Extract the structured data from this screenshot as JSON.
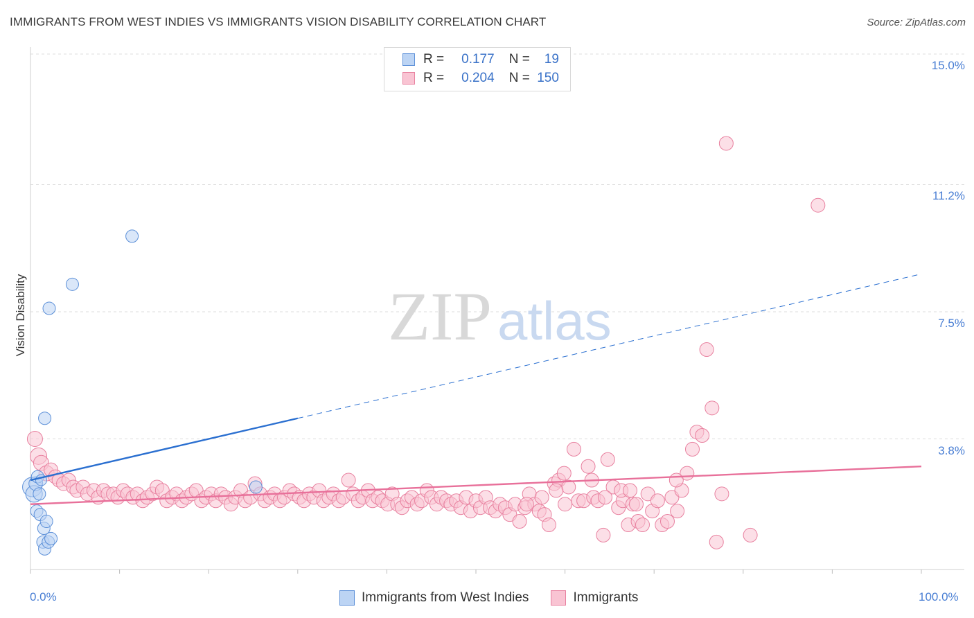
{
  "header": {
    "title": "IMMIGRANTS FROM WEST INDIES VS IMMIGRANTS VISION DISABILITY CORRELATION CHART",
    "source": "Source: ZipAtlas.com"
  },
  "watermark": {
    "zip": "ZIP",
    "atlas": "atlas"
  },
  "legend": {
    "rows": [
      {
        "r_label": "R =",
        "r_value": "0.177",
        "n_label": "N =",
        "n_value": "19",
        "color": "#a9c8f0"
      },
      {
        "r_label": "R =",
        "r_value": "0.204",
        "n_label": "N =",
        "n_value": "150",
        "color": "#f7b6c9"
      }
    ],
    "bottom": [
      {
        "label": "Immigrants from West Indies",
        "color": "#a9c8f0"
      },
      {
        "label": "Immigrants",
        "color": "#f7b6c9"
      }
    ]
  },
  "colors": {
    "blue": "#5b8fd8",
    "blue_fill": "#bcd4f4",
    "blue_line": "#2a6fd0",
    "pink": "#e8809f",
    "pink_fill": "#f9c4d3",
    "pink_line": "#e8709a",
    "grid": "#dcdcdc",
    "tick_text": "#4a7fd4"
  },
  "chart_data": {
    "type": "scatter",
    "title": "IMMIGRANTS FROM WEST INDIES VS IMMIGRANTS VISION DISABILITY CORRELATION CHART",
    "xlabel": "",
    "ylabel": "Vision Disability",
    "xlim": [
      0,
      100
    ],
    "ylim": [
      0,
      15
    ],
    "x_tick_labels": [
      "0.0%",
      "100.0%"
    ],
    "y_ticks": [
      3.8,
      7.5,
      11.2,
      15.0
    ],
    "y_tick_labels": [
      "3.8%",
      "7.5%",
      "11.2%",
      "15.0%"
    ],
    "grid": true,
    "series": [
      {
        "name": "Immigrants from West Indies",
        "r": 0.177,
        "n": 19,
        "trend": {
          "x0": 0,
          "y0": 2.6,
          "x1": 30,
          "y1": 4.4,
          "dash_to_x": 100,
          "dash_to_y": 8.6
        },
        "points": [
          [
            0.2,
            2.4,
            14
          ],
          [
            0.4,
            2.2,
            12
          ],
          [
            0.6,
            2.5,
            10
          ],
          [
            0.8,
            2.7,
            9
          ],
          [
            1.0,
            2.2,
            9
          ],
          [
            1.2,
            2.6,
            8
          ],
          [
            0.7,
            1.7,
            9
          ],
          [
            1.1,
            1.6,
            9
          ],
          [
            1.4,
            0.8,
            9
          ],
          [
            1.5,
            1.2,
            9
          ],
          [
            1.6,
            0.6,
            9
          ],
          [
            2.0,
            0.8,
            9
          ],
          [
            2.3,
            0.9,
            9
          ],
          [
            1.6,
            4.4,
            9
          ],
          [
            2.1,
            7.6,
            9
          ],
          [
            4.7,
            8.3,
            9
          ],
          [
            11.4,
            9.7,
            9
          ],
          [
            25.3,
            2.4,
            9
          ],
          [
            1.8,
            1.4,
            9
          ]
        ]
      },
      {
        "name": "Immigrants",
        "r": 0.204,
        "n": 150,
        "trend": {
          "x0": 0,
          "y0": 1.9,
          "x1": 100,
          "y1": 3.0
        },
        "points": [
          [
            0.5,
            3.8,
            11
          ],
          [
            0.9,
            3.3,
            12
          ],
          [
            1.2,
            3.1,
            11
          ],
          [
            1.8,
            2.8,
            11
          ],
          [
            2.3,
            2.9,
            10
          ],
          [
            2.8,
            2.7,
            10
          ],
          [
            3.2,
            2.6,
            10
          ],
          [
            3.7,
            2.5,
            10
          ],
          [
            4.3,
            2.6,
            10
          ],
          [
            4.8,
            2.4,
            10
          ],
          [
            5.2,
            2.3,
            10
          ],
          [
            5.9,
            2.4,
            10
          ],
          [
            6.4,
            2.2,
            10
          ],
          [
            7.1,
            2.3,
            10
          ],
          [
            7.6,
            2.1,
            10
          ],
          [
            8.2,
            2.3,
            10
          ],
          [
            8.7,
            2.2,
            10
          ],
          [
            9.3,
            2.2,
            10
          ],
          [
            9.8,
            2.1,
            10
          ],
          [
            10.4,
            2.3,
            10
          ],
          [
            10.9,
            2.2,
            10
          ],
          [
            11.5,
            2.1,
            10
          ],
          [
            12.0,
            2.2,
            10
          ],
          [
            12.6,
            2.0,
            10
          ],
          [
            13.1,
            2.1,
            10
          ],
          [
            13.7,
            2.2,
            10
          ],
          [
            14.2,
            2.4,
            10
          ],
          [
            14.8,
            2.3,
            10
          ],
          [
            15.3,
            2.0,
            10
          ],
          [
            15.9,
            2.1,
            10
          ],
          [
            16.4,
            2.2,
            10
          ],
          [
            17.0,
            2.0,
            10
          ],
          [
            17.5,
            2.1,
            10
          ],
          [
            18.1,
            2.2,
            10
          ],
          [
            18.6,
            2.3,
            10
          ],
          [
            19.2,
            2.0,
            10
          ],
          [
            19.7,
            2.1,
            10
          ],
          [
            20.3,
            2.2,
            10
          ],
          [
            20.8,
            2.0,
            10
          ],
          [
            21.4,
            2.2,
            10
          ],
          [
            21.9,
            2.1,
            10
          ],
          [
            22.5,
            1.9,
            10
          ],
          [
            23.0,
            2.1,
            10
          ],
          [
            23.6,
            2.3,
            10
          ],
          [
            24.1,
            2.0,
            10
          ],
          [
            24.7,
            2.1,
            10
          ],
          [
            25.2,
            2.5,
            10
          ],
          [
            25.8,
            2.2,
            10
          ],
          [
            26.3,
            2.0,
            10
          ],
          [
            26.9,
            2.1,
            10
          ],
          [
            27.4,
            2.2,
            10
          ],
          [
            28.0,
            2.0,
            10
          ],
          [
            28.5,
            2.1,
            10
          ],
          [
            29.1,
            2.3,
            10
          ],
          [
            29.6,
            2.2,
            10
          ],
          [
            30.2,
            2.1,
            10
          ],
          [
            30.7,
            2.0,
            10
          ],
          [
            31.3,
            2.2,
            10
          ],
          [
            31.8,
            2.1,
            10
          ],
          [
            32.4,
            2.3,
            10
          ],
          [
            32.9,
            2.0,
            10
          ],
          [
            33.5,
            2.1,
            10
          ],
          [
            34.0,
            2.2,
            10
          ],
          [
            34.6,
            2.0,
            10
          ],
          [
            35.1,
            2.1,
            10
          ],
          [
            35.7,
            2.6,
            10
          ],
          [
            36.2,
            2.2,
            10
          ],
          [
            36.8,
            2.0,
            10
          ],
          [
            37.3,
            2.1,
            10
          ],
          [
            37.9,
            2.3,
            10
          ],
          [
            38.4,
            2.0,
            10
          ],
          [
            39.0,
            2.1,
            10
          ],
          [
            39.5,
            2.0,
            10
          ],
          [
            40.1,
            1.9,
            10
          ],
          [
            40.6,
            2.2,
            10
          ],
          [
            41.2,
            1.9,
            10
          ],
          [
            41.7,
            1.8,
            10
          ],
          [
            42.3,
            2.0,
            10
          ],
          [
            42.8,
            2.1,
            10
          ],
          [
            43.4,
            1.9,
            10
          ],
          [
            43.9,
            2.0,
            10
          ],
          [
            44.5,
            2.3,
            10
          ],
          [
            45.0,
            2.1,
            10
          ],
          [
            45.6,
            1.9,
            10
          ],
          [
            46.1,
            2.1,
            10
          ],
          [
            46.7,
            2.0,
            10
          ],
          [
            47.2,
            1.9,
            10
          ],
          [
            47.8,
            2.0,
            10
          ],
          [
            48.3,
            1.8,
            10
          ],
          [
            48.9,
            2.1,
            10
          ],
          [
            49.4,
            1.7,
            10
          ],
          [
            50.0,
            2.0,
            10
          ],
          [
            50.5,
            1.8,
            10
          ],
          [
            51.1,
            2.1,
            10
          ],
          [
            51.6,
            1.8,
            10
          ],
          [
            52.2,
            1.7,
            10
          ],
          [
            52.7,
            1.9,
            10
          ],
          [
            53.3,
            1.8,
            10
          ],
          [
            53.8,
            1.6,
            10
          ],
          [
            54.4,
            1.9,
            10
          ],
          [
            54.9,
            1.4,
            10
          ],
          [
            55.5,
            1.8,
            10
          ],
          [
            56.0,
            2.2,
            10
          ],
          [
            56.6,
            1.9,
            10
          ],
          [
            57.1,
            1.7,
            10
          ],
          [
            57.7,
            1.6,
            10
          ],
          [
            58.2,
            1.3,
            10
          ],
          [
            58.8,
            2.5,
            10
          ],
          [
            59.3,
            2.6,
            10
          ],
          [
            59.9,
            2.8,
            10
          ],
          [
            60.4,
            2.4,
            10
          ],
          [
            61.0,
            3.5,
            10
          ],
          [
            61.5,
            2.0,
            10
          ],
          [
            62.1,
            2.0,
            10
          ],
          [
            62.6,
            3.0,
            10
          ],
          [
            63.2,
            2.1,
            10
          ],
          [
            63.7,
            2.0,
            10
          ],
          [
            64.3,
            1.0,
            10
          ],
          [
            64.8,
            3.2,
            10
          ],
          [
            65.4,
            2.4,
            10
          ],
          [
            66.0,
            1.8,
            10
          ],
          [
            66.5,
            2.0,
            10
          ],
          [
            67.1,
            1.3,
            10
          ],
          [
            67.6,
            1.9,
            10
          ],
          [
            68.2,
            1.4,
            10
          ],
          [
            68.7,
            1.3,
            10
          ],
          [
            69.3,
            2.2,
            10
          ],
          [
            69.8,
            1.7,
            10
          ],
          [
            70.4,
            2.0,
            10
          ],
          [
            70.9,
            1.3,
            10
          ],
          [
            71.5,
            1.4,
            10
          ],
          [
            72.0,
            2.1,
            10
          ],
          [
            72.6,
            1.7,
            10
          ],
          [
            73.1,
            2.3,
            10
          ],
          [
            73.7,
            2.8,
            10
          ],
          [
            74.3,
            3.5,
            10
          ],
          [
            74.8,
            4.0,
            10
          ],
          [
            75.4,
            3.9,
            10
          ],
          [
            75.9,
            6.4,
            10
          ],
          [
            76.5,
            4.7,
            10
          ],
          [
            77.0,
            0.8,
            10
          ],
          [
            77.6,
            2.2,
            10
          ],
          [
            78.1,
            12.4,
            10
          ],
          [
            88.4,
            10.6,
            10
          ],
          [
            80.8,
            1.0,
            10
          ],
          [
            64.5,
            2.1,
            10
          ],
          [
            59.0,
            2.3,
            10
          ],
          [
            60.0,
            1.9,
            10
          ],
          [
            66.3,
            2.3,
            10
          ],
          [
            72.5,
            2.6,
            10
          ],
          [
            63.0,
            2.6,
            10
          ],
          [
            55.7,
            1.9,
            10
          ],
          [
            57.4,
            2.1,
            10
          ],
          [
            67.3,
            2.3,
            10
          ],
          [
            68.0,
            1.9,
            10
          ]
        ]
      }
    ]
  }
}
